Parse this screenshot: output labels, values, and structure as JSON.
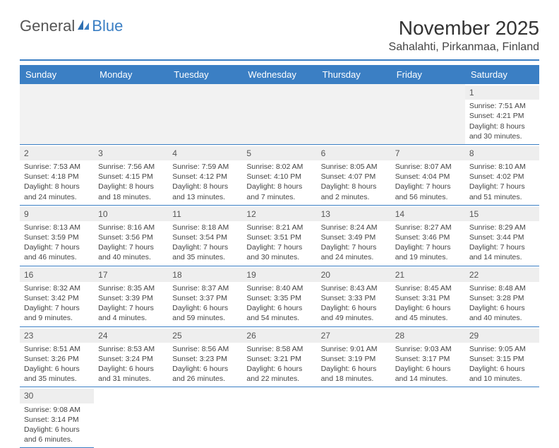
{
  "logo": {
    "general": "General",
    "blue": "Blue"
  },
  "title": "November 2025",
  "location": "Sahalahti, Pirkanmaa, Finland",
  "weekdays": [
    "Sunday",
    "Monday",
    "Tuesday",
    "Wednesday",
    "Thursday",
    "Friday",
    "Saturday"
  ],
  "colors": {
    "header_bg": "#3b7fc4",
    "header_text": "#ffffff",
    "daynum_bg": "#eeeeee",
    "border": "#3b7fc4",
    "text": "#444444"
  },
  "typography": {
    "title_fontsize": 28,
    "location_fontsize": 16,
    "weekday_fontsize": 13,
    "cell_fontsize": 10.5
  },
  "days": [
    {
      "n": 1,
      "sunrise": "7:51 AM",
      "sunset": "4:21 PM",
      "daylight": "8 hours and 30 minutes."
    },
    {
      "n": 2,
      "sunrise": "7:53 AM",
      "sunset": "4:18 PM",
      "daylight": "8 hours and 24 minutes."
    },
    {
      "n": 3,
      "sunrise": "7:56 AM",
      "sunset": "4:15 PM",
      "daylight": "8 hours and 18 minutes."
    },
    {
      "n": 4,
      "sunrise": "7:59 AM",
      "sunset": "4:12 PM",
      "daylight": "8 hours and 13 minutes."
    },
    {
      "n": 5,
      "sunrise": "8:02 AM",
      "sunset": "4:10 PM",
      "daylight": "8 hours and 7 minutes."
    },
    {
      "n": 6,
      "sunrise": "8:05 AM",
      "sunset": "4:07 PM",
      "daylight": "8 hours and 2 minutes."
    },
    {
      "n": 7,
      "sunrise": "8:07 AM",
      "sunset": "4:04 PM",
      "daylight": "7 hours and 56 minutes."
    },
    {
      "n": 8,
      "sunrise": "8:10 AM",
      "sunset": "4:02 PM",
      "daylight": "7 hours and 51 minutes."
    },
    {
      "n": 9,
      "sunrise": "8:13 AM",
      "sunset": "3:59 PM",
      "daylight": "7 hours and 46 minutes."
    },
    {
      "n": 10,
      "sunrise": "8:16 AM",
      "sunset": "3:56 PM",
      "daylight": "7 hours and 40 minutes."
    },
    {
      "n": 11,
      "sunrise": "8:18 AM",
      "sunset": "3:54 PM",
      "daylight": "7 hours and 35 minutes."
    },
    {
      "n": 12,
      "sunrise": "8:21 AM",
      "sunset": "3:51 PM",
      "daylight": "7 hours and 30 minutes."
    },
    {
      "n": 13,
      "sunrise": "8:24 AM",
      "sunset": "3:49 PM",
      "daylight": "7 hours and 24 minutes."
    },
    {
      "n": 14,
      "sunrise": "8:27 AM",
      "sunset": "3:46 PM",
      "daylight": "7 hours and 19 minutes."
    },
    {
      "n": 15,
      "sunrise": "8:29 AM",
      "sunset": "3:44 PM",
      "daylight": "7 hours and 14 minutes."
    },
    {
      "n": 16,
      "sunrise": "8:32 AM",
      "sunset": "3:42 PM",
      "daylight": "7 hours and 9 minutes."
    },
    {
      "n": 17,
      "sunrise": "8:35 AM",
      "sunset": "3:39 PM",
      "daylight": "7 hours and 4 minutes."
    },
    {
      "n": 18,
      "sunrise": "8:37 AM",
      "sunset": "3:37 PM",
      "daylight": "6 hours and 59 minutes."
    },
    {
      "n": 19,
      "sunrise": "8:40 AM",
      "sunset": "3:35 PM",
      "daylight": "6 hours and 54 minutes."
    },
    {
      "n": 20,
      "sunrise": "8:43 AM",
      "sunset": "3:33 PM",
      "daylight": "6 hours and 49 minutes."
    },
    {
      "n": 21,
      "sunrise": "8:45 AM",
      "sunset": "3:31 PM",
      "daylight": "6 hours and 45 minutes."
    },
    {
      "n": 22,
      "sunrise": "8:48 AM",
      "sunset": "3:28 PM",
      "daylight": "6 hours and 40 minutes."
    },
    {
      "n": 23,
      "sunrise": "8:51 AM",
      "sunset": "3:26 PM",
      "daylight": "6 hours and 35 minutes."
    },
    {
      "n": 24,
      "sunrise": "8:53 AM",
      "sunset": "3:24 PM",
      "daylight": "6 hours and 31 minutes."
    },
    {
      "n": 25,
      "sunrise": "8:56 AM",
      "sunset": "3:23 PM",
      "daylight": "6 hours and 26 minutes."
    },
    {
      "n": 26,
      "sunrise": "8:58 AM",
      "sunset": "3:21 PM",
      "daylight": "6 hours and 22 minutes."
    },
    {
      "n": 27,
      "sunrise": "9:01 AM",
      "sunset": "3:19 PM",
      "daylight": "6 hours and 18 minutes."
    },
    {
      "n": 28,
      "sunrise": "9:03 AM",
      "sunset": "3:17 PM",
      "daylight": "6 hours and 14 minutes."
    },
    {
      "n": 29,
      "sunrise": "9:05 AM",
      "sunset": "3:15 PM",
      "daylight": "6 hours and 10 minutes."
    },
    {
      "n": 30,
      "sunrise": "9:08 AM",
      "sunset": "3:14 PM",
      "daylight": "6 hours and 6 minutes."
    }
  ],
  "layout": {
    "first_weekday_index": 6,
    "total_days": 30
  }
}
